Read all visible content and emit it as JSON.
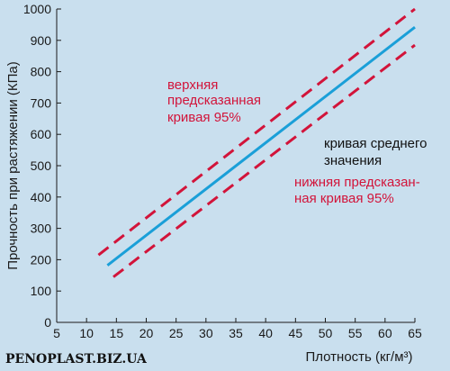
{
  "chart_data": {
    "type": "line",
    "xlabel": "Плотность (кг/м³)",
    "ylabel": "Прочность при растяжении (КПа)",
    "xlim": [
      5,
      65
    ],
    "ylim": [
      0,
      1000
    ],
    "x_ticks": [
      5,
      10,
      15,
      20,
      25,
      30,
      35,
      40,
      45,
      50,
      55,
      60,
      65
    ],
    "y_ticks": [
      0,
      100,
      200,
      300,
      400,
      500,
      600,
      700,
      800,
      900,
      1000
    ],
    "grid": false,
    "series": [
      {
        "style": "dashed",
        "color": "#d2143a",
        "x": [
          12,
          65
        ],
        "y": [
          215,
          1000
        ]
      },
      {
        "style": "solid",
        "color": "#1a9fd8",
        "x": [
          13.5,
          65
        ],
        "y": [
          182,
          942
        ]
      },
      {
        "style": "dashed",
        "color": "#d2143a",
        "x": [
          14.5,
          65
        ],
        "y": [
          145,
          885
        ]
      }
    ],
    "annotations": [
      {
        "lines": [
          "верхняя",
          "предсказанная",
          "кривая 95%"
        ],
        "color": "#d2143a"
      },
      {
        "lines": [
          "кривая среднего",
          "значения"
        ],
        "color": "#111111"
      },
      {
        "lines": [
          "нижняя предсказан-",
          "ная кривая 95%"
        ],
        "color": "#d2143a"
      }
    ]
  },
  "watermark": "PENOPLAST.BIZ.UA",
  "colors": {
    "background": "#c9dfee",
    "upper_lower": "#d2143a",
    "mean": "#1a9fd8"
  }
}
